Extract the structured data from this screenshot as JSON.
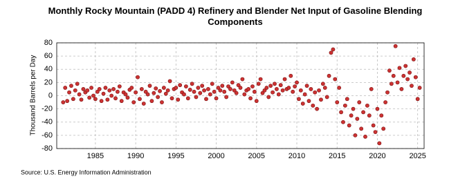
{
  "chart_data": {
    "type": "scatter",
    "title": "Monthly Rocky Mountain (PADD 4) Refinery and Blender Net Input of Gasoline Blending Components",
    "ylabel": "Thousand Barrels per Day",
    "source": "Source: U.S. Energy Information Administration",
    "xlim": [
      1980.2,
      2025.8
    ],
    "xticks": [
      1985,
      1990,
      1995,
      2000,
      2005,
      2010,
      2015,
      2020,
      2025
    ],
    "ylim": [
      -80,
      80
    ],
    "yticks": [
      -80,
      -60,
      -40,
      -20,
      0,
      20,
      40,
      60,
      80
    ],
    "grid": true,
    "color": "#cc3333",
    "x": [
      1981,
      1981.25,
      1981.5,
      1981.75,
      1982,
      1982.25,
      1982.5,
      1982.75,
      1983,
      1983.25,
      1983.5,
      1983.75,
      1984,
      1984.25,
      1984.5,
      1984.75,
      1985,
      1985.25,
      1985.5,
      1985.75,
      1986,
      1986.25,
      1986.5,
      1986.75,
      1987,
      1987.25,
      1987.5,
      1987.75,
      1988,
      1988.25,
      1988.5,
      1988.75,
      1989,
      1989.25,
      1989.5,
      1989.75,
      1990,
      1990.25,
      1990.5,
      1990.75,
      1991,
      1991.25,
      1991.5,
      1991.75,
      1992,
      1992.25,
      1992.5,
      1992.75,
      1993,
      1993.25,
      1993.5,
      1993.75,
      1994,
      1994.25,
      1994.5,
      1994.75,
      1995,
      1995.25,
      1995.5,
      1995.75,
      1996,
      1996.25,
      1996.5,
      1996.75,
      1997,
      1997.25,
      1997.5,
      1997.75,
      1998,
      1998.25,
      1998.5,
      1998.75,
      1999,
      1999.25,
      1999.5,
      1999.75,
      2000,
      2000.25,
      2000.5,
      2000.75,
      2001,
      2001.25,
      2001.5,
      2001.75,
      2002,
      2002.25,
      2002.5,
      2002.75,
      2003,
      2003.25,
      2003.5,
      2003.75,
      2004,
      2004.25,
      2004.5,
      2004.75,
      2005,
      2005.25,
      2005.5,
      2005.75,
      2006,
      2006.25,
      2006.5,
      2006.75,
      2007,
      2007.25,
      2007.5,
      2007.75,
      2008,
      2008.25,
      2008.5,
      2008.75,
      2009,
      2009.25,
      2009.5,
      2009.75,
      2010,
      2010.25,
      2010.5,
      2010.75,
      2011,
      2011.25,
      2011.5,
      2011.75,
      2012,
      2012.25,
      2012.5,
      2012.75,
      2013,
      2013.25,
      2013.5,
      2013.75,
      2014,
      2014.25,
      2014.5,
      2014.75,
      2015,
      2015.25,
      2015.5,
      2015.75,
      2016,
      2016.25,
      2016.5,
      2016.75,
      2017,
      2017.25,
      2017.5,
      2017.75,
      2018,
      2018.25,
      2018.5,
      2018.75,
      2019,
      2019.25,
      2019.5,
      2019.75,
      2020,
      2020.25,
      2020.5,
      2020.75,
      2021,
      2021.25,
      2021.5,
      2021.75,
      2022,
      2022.25,
      2022.5,
      2022.75,
      2023,
      2023.25,
      2023.5,
      2023.75,
      2024,
      2024.25,
      2024.5,
      2024.75,
      2025,
      2025.25
    ],
    "values": [
      -10,
      12,
      -8,
      5,
      15,
      -5,
      8,
      18,
      2,
      -6,
      10,
      5,
      8,
      -3,
      12,
      0,
      -5,
      6,
      10,
      -8,
      3,
      12,
      -6,
      8,
      0,
      10,
      -4,
      6,
      14,
      -8,
      5,
      2,
      -3,
      9,
      12,
      -10,
      5,
      28,
      -5,
      10,
      -12,
      6,
      2,
      15,
      -8,
      4,
      11,
      -2,
      7,
      -10,
      12,
      3,
      8,
      22,
      -4,
      10,
      12,
      -6,
      16,
      5,
      2,
      14,
      -4,
      9,
      18,
      6,
      -2,
      12,
      4,
      15,
      8,
      -5,
      10,
      2,
      18,
      6,
      -4,
      12,
      8,
      15,
      6,
      -2,
      14,
      10,
      20,
      8,
      4,
      16,
      12,
      25,
      2,
      8,
      10,
      -4,
      14,
      6,
      -8,
      18,
      25,
      4,
      8,
      12,
      -2,
      15,
      5,
      18,
      10,
      2,
      16,
      8,
      25,
      10,
      12,
      30,
      6,
      14,
      20,
      -5,
      8,
      -12,
      2,
      15,
      -8,
      10,
      -15,
      5,
      -20,
      8,
      -6,
      18,
      12,
      -2,
      30,
      65,
      70,
      25,
      -10,
      12,
      -25,
      -40,
      -15,
      -5,
      -45,
      -30,
      -20,
      -60,
      -35,
      -10,
      -50,
      -25,
      -62,
      -15,
      -30,
      10,
      -45,
      -55,
      -20,
      -72,
      -30,
      -50,
      -10,
      5,
      38,
      18,
      30,
      75,
      20,
      42,
      10,
      30,
      45,
      25,
      35,
      15,
      55,
      28,
      -5,
      12
    ]
  }
}
